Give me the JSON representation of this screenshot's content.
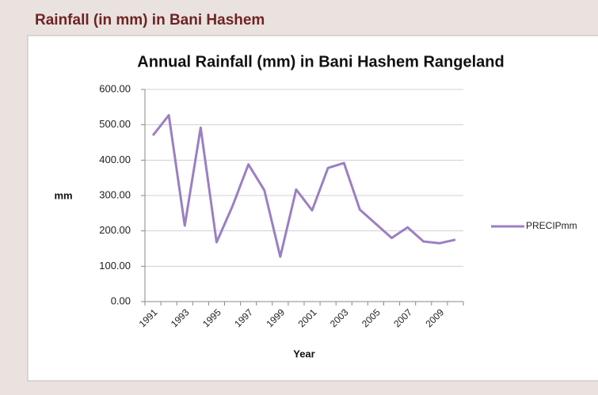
{
  "header": {
    "title": "Rainfall (in mm) in Bani Hashem"
  },
  "chart_data": {
    "type": "line",
    "title": "Annual Rainfall (mm) in Bani Hashem Rangeland",
    "x_label": "Year",
    "y_label": "mm",
    "categories": [
      "1991",
      null,
      "1993",
      null,
      "1995",
      null,
      "1997",
      null,
      "1999",
      null,
      "2001",
      null,
      "2003",
      null,
      "2005",
      null,
      "2007",
      null,
      "2009",
      null
    ],
    "series": [
      {
        "name": "PRECIPmm",
        "color": "#9b7fc4",
        "values": [
          470,
          527,
          215,
          492,
          168,
          270,
          388,
          315,
          127,
          317,
          258,
          378,
          392,
          260,
          220,
          180,
          210,
          170,
          165,
          175
        ]
      }
    ],
    "ylim": [
      0,
      600
    ],
    "yticks": [
      {
        "value": 0,
        "label": "0.00"
      },
      {
        "value": 100,
        "label": "100.00"
      },
      {
        "value": 200,
        "label": "200.00"
      },
      {
        "value": 300,
        "label": "300.00"
      },
      {
        "value": 400,
        "label": "400.00"
      },
      {
        "value": 500,
        "label": "500.00"
      },
      {
        "value": 600,
        "label": "600.00"
      }
    ],
    "grid": true,
    "legend": "right"
  }
}
